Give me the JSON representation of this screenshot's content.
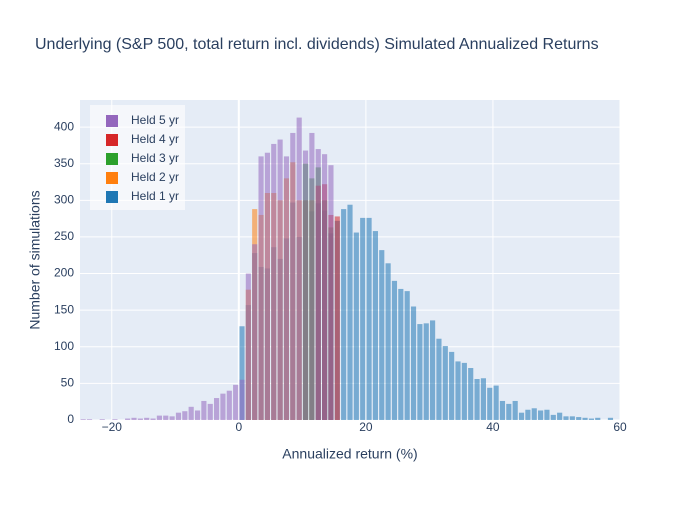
{
  "chart_data": {
    "type": "histogram",
    "title": "Underlying (S&P 500, total return incl. dividends) Simulated Annualized Returns",
    "x_label": "Annualized return (%)",
    "y_label": "Number of simulations",
    "xlim": [
      -25,
      60
    ],
    "ylim": [
      0,
      437
    ],
    "xticks": [
      {
        "value": -20,
        "label": "−20"
      },
      0,
      20,
      40,
      60
    ],
    "yticks": [
      0,
      50,
      100,
      150,
      200,
      250,
      300,
      350,
      400
    ],
    "grid": true,
    "legend": "top-left",
    "series": [
      {
        "name": "Held 1 yr",
        "color": "#1f77b4",
        "bins": [
          0,
          1,
          2,
          3,
          4,
          5,
          6,
          7,
          8,
          9,
          10,
          11,
          12,
          13,
          14,
          15,
          16,
          17,
          18,
          19,
          20,
          21,
          22,
          23,
          24,
          25,
          26,
          27,
          28,
          29,
          30,
          31,
          32,
          33,
          34,
          35,
          36,
          37,
          38,
          39,
          40,
          41,
          42,
          43,
          44,
          45,
          46,
          47,
          48,
          49,
          50,
          51,
          52,
          53,
          54,
          55,
          56,
          57,
          58,
          59
        ],
        "values": [
          128,
          157,
          228,
          209,
          207,
          236,
          220,
          248,
          297,
          250,
          300,
          285,
          296,
          286,
          255,
          272,
          288,
          294,
          256,
          276,
          276,
          258,
          232,
          214,
          190,
          179,
          176,
          155,
          131,
          132,
          136,
          111,
          101,
          93,
          80,
          78,
          71,
          56,
          57,
          44,
          47,
          26,
          22,
          26,
          10,
          14,
          16,
          13,
          14,
          7,
          10,
          5,
          5,
          4,
          3,
          2,
          3,
          0,
          3
        ]
      },
      {
        "name": "Held 2 yr",
        "color": "#ff7f0e",
        "bins": [
          1,
          2,
          3,
          4,
          5,
          6,
          7,
          8,
          9,
          10,
          11,
          12
        ],
        "values": [
          178,
          288,
          280,
          310,
          310,
          300,
          330,
          352,
          300,
          300,
          300
        ]
      },
      {
        "name": "Held 3 yr",
        "color": "#2ca02c",
        "bins": [
          10,
          11,
          12,
          13,
          14,
          15
        ],
        "values": [
          350,
          330,
          345,
          300,
          263
        ]
      },
      {
        "name": "Held 4 yr",
        "color": "#d62728",
        "bins": [
          12,
          13,
          14,
          15,
          16
        ],
        "values": [
          320,
          322,
          280,
          278
        ]
      },
      {
        "name": "Held 5 yr",
        "color": "#9467bd",
        "bins": [
          -25,
          -24,
          -23,
          -22,
          -21,
          -20,
          -19,
          -18,
          -17,
          -16,
          -15,
          -14,
          -13,
          -12,
          -11,
          -10,
          -9,
          -8,
          -7,
          -6,
          -5,
          -4,
          -3,
          -2,
          -1,
          0,
          1,
          2,
          3,
          4,
          5,
          6,
          7,
          8,
          9,
          10,
          11,
          12,
          13,
          14,
          15
        ],
        "values": [
          1,
          1,
          0,
          1,
          0,
          1,
          0,
          2,
          3,
          2,
          3,
          2,
          6,
          6,
          5,
          10,
          12,
          18,
          13,
          26,
          22,
          30,
          36,
          40,
          48,
          55,
          200,
          240,
          360,
          365,
          377,
          383,
          360,
          392,
          413,
          368,
          392,
          370,
          363,
          348,
          313
        ]
      }
    ]
  }
}
